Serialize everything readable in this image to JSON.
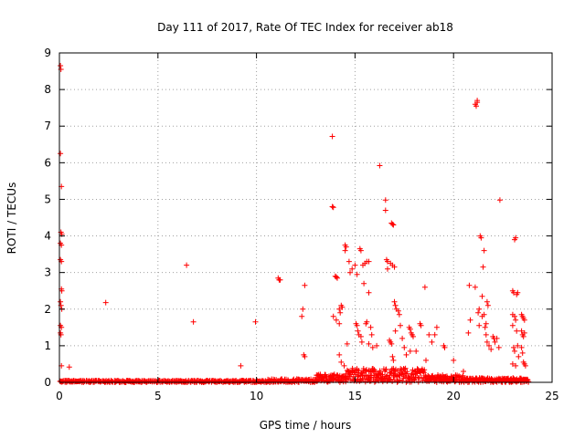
{
  "chart_data": {
    "type": "scatter",
    "title": "Day 111 of 2017, Rate Of TEC Index for receiver ab18",
    "xlabel": "GPS time / hours",
    "ylabel": "ROTI / TECUs",
    "xlim": [
      0,
      25
    ],
    "ylim": [
      0,
      9
    ],
    "xticks": [
      0,
      5,
      10,
      15,
      20,
      25
    ],
    "yticks": [
      0,
      1,
      2,
      3,
      4,
      5,
      6,
      7,
      8,
      9
    ],
    "grid": true,
    "marker": "+",
    "color": "#ff0000",
    "series": [
      {
        "name": "ROTI",
        "points": [
          [
            0.05,
            8.65
          ],
          [
            0.08,
            8.55
          ],
          [
            0.05,
            6.25
          ],
          [
            0.1,
            5.35
          ],
          [
            0.08,
            4.1
          ],
          [
            0.12,
            4.05
          ],
          [
            0.05,
            3.8
          ],
          [
            0.1,
            3.75
          ],
          [
            0.05,
            3.35
          ],
          [
            0.1,
            3.3
          ],
          [
            0.1,
            2.55
          ],
          [
            0.12,
            2.5
          ],
          [
            0.05,
            2.2
          ],
          [
            0.08,
            2.1
          ],
          [
            0.12,
            2.0
          ],
          [
            0.05,
            1.55
          ],
          [
            0.1,
            1.5
          ],
          [
            0.05,
            1.35
          ],
          [
            0.08,
            1.3
          ],
          [
            0.1,
            0.45
          ],
          [
            0.5,
            0.42
          ],
          [
            2.35,
            2.18
          ],
          [
            6.45,
            3.2
          ],
          [
            6.8,
            1.65
          ],
          [
            9.2,
            0.45
          ],
          [
            9.95,
            1.65
          ],
          [
            11.1,
            2.85
          ],
          [
            11.15,
            2.8
          ],
          [
            11.2,
            2.8
          ],
          [
            12.35,
            2.0
          ],
          [
            12.3,
            1.8
          ],
          [
            12.45,
            2.65
          ],
          [
            12.4,
            0.75
          ],
          [
            12.45,
            0.7
          ],
          [
            13.85,
            6.72
          ],
          [
            13.85,
            4.8
          ],
          [
            13.9,
            4.78
          ],
          [
            14.0,
            2.9
          ],
          [
            14.1,
            2.85
          ],
          [
            14.05,
            2.88
          ],
          [
            13.9,
            1.8
          ],
          [
            14.05,
            1.7
          ],
          [
            14.2,
            1.6
          ],
          [
            14.2,
            2.0
          ],
          [
            14.3,
            2.1
          ],
          [
            14.35,
            2.05
          ],
          [
            14.25,
            1.9
          ],
          [
            14.5,
            3.75
          ],
          [
            14.5,
            3.6
          ],
          [
            14.55,
            3.7
          ],
          [
            14.7,
            3.3
          ],
          [
            14.75,
            3.0
          ],
          [
            14.85,
            3.1
          ],
          [
            15.0,
            3.2
          ],
          [
            15.1,
            2.95
          ],
          [
            14.6,
            1.05
          ],
          [
            14.2,
            0.75
          ],
          [
            14.3,
            0.55
          ],
          [
            14.45,
            0.45
          ],
          [
            15.05,
            1.6
          ],
          [
            15.1,
            1.55
          ],
          [
            15.15,
            1.4
          ],
          [
            15.2,
            1.3
          ],
          [
            15.3,
            1.25
          ],
          [
            15.35,
            1.1
          ],
          [
            15.25,
            3.65
          ],
          [
            15.3,
            3.6
          ],
          [
            15.4,
            3.2
          ],
          [
            15.5,
            3.25
          ],
          [
            15.6,
            3.3
          ],
          [
            15.7,
            3.3
          ],
          [
            15.45,
            2.7
          ],
          [
            15.7,
            2.45
          ],
          [
            15.55,
            1.6
          ],
          [
            15.6,
            1.65
          ],
          [
            15.8,
            1.5
          ],
          [
            15.85,
            1.3
          ],
          [
            15.7,
            1.05
          ],
          [
            15.9,
            0.95
          ],
          [
            16.1,
            1.0
          ],
          [
            16.25,
            5.92
          ],
          [
            16.55,
            4.98
          ],
          [
            16.55,
            4.7
          ],
          [
            16.85,
            4.35
          ],
          [
            16.9,
            4.32
          ],
          [
            16.95,
            4.3
          ],
          [
            16.6,
            3.35
          ],
          [
            16.65,
            3.3
          ],
          [
            16.8,
            3.25
          ],
          [
            16.9,
            3.2
          ],
          [
            17.0,
            3.15
          ],
          [
            16.65,
            3.1
          ],
          [
            16.75,
            1.15
          ],
          [
            16.8,
            1.1
          ],
          [
            16.85,
            1.05
          ],
          [
            16.9,
            0.7
          ],
          [
            16.95,
            0.6
          ],
          [
            17.0,
            2.2
          ],
          [
            17.05,
            2.1
          ],
          [
            17.1,
            2.0
          ],
          [
            17.2,
            1.95
          ],
          [
            17.25,
            1.85
          ],
          [
            17.3,
            1.55
          ],
          [
            17.05,
            1.4
          ],
          [
            17.4,
            1.2
          ],
          [
            17.5,
            0.95
          ],
          [
            17.6,
            0.75
          ],
          [
            17.75,
            1.5
          ],
          [
            17.8,
            1.45
          ],
          [
            17.85,
            1.35
          ],
          [
            17.9,
            1.3
          ],
          [
            17.95,
            1.25
          ],
          [
            17.8,
            0.85
          ],
          [
            18.1,
            0.85
          ],
          [
            18.3,
            1.6
          ],
          [
            18.35,
            1.55
          ],
          [
            18.55,
            2.6
          ],
          [
            18.6,
            0.6
          ],
          [
            18.75,
            1.3
          ],
          [
            18.9,
            1.1
          ],
          [
            19.05,
            1.3
          ],
          [
            19.15,
            1.5
          ],
          [
            19.5,
            1.0
          ],
          [
            19.55,
            0.95
          ],
          [
            20.0,
            0.6
          ],
          [
            20.5,
            0.3
          ],
          [
            20.75,
            1.35
          ],
          [
            20.8,
            2.65
          ],
          [
            20.85,
            1.7
          ],
          [
            21.1,
            2.6
          ],
          [
            21.1,
            7.6
          ],
          [
            21.15,
            7.55
          ],
          [
            21.2,
            7.7
          ],
          [
            21.2,
            7.65
          ],
          [
            21.25,
            1.9
          ],
          [
            21.3,
            2.0
          ],
          [
            21.3,
            1.55
          ],
          [
            21.35,
            4.0
          ],
          [
            21.4,
            3.95
          ],
          [
            21.45,
            2.35
          ],
          [
            21.45,
            1.8
          ],
          [
            21.5,
            3.15
          ],
          [
            21.55,
            3.6
          ],
          [
            21.55,
            1.85
          ],
          [
            21.6,
            1.5
          ],
          [
            21.65,
            1.3
          ],
          [
            21.7,
            2.2
          ],
          [
            21.75,
            2.1
          ],
          [
            21.65,
            1.6
          ],
          [
            21.7,
            1.1
          ],
          [
            21.8,
            1.0
          ],
          [
            21.9,
            0.9
          ],
          [
            22.0,
            1.25
          ],
          [
            22.05,
            1.2
          ],
          [
            22.1,
            1.1
          ],
          [
            22.2,
            1.2
          ],
          [
            22.3,
            0.95
          ],
          [
            22.35,
            4.98
          ],
          [
            23.0,
            2.5
          ],
          [
            23.05,
            2.45
          ],
          [
            23.1,
            3.9
          ],
          [
            23.15,
            3.95
          ],
          [
            23.2,
            2.4
          ],
          [
            23.25,
            2.45
          ],
          [
            23.0,
            1.85
          ],
          [
            23.1,
            1.8
          ],
          [
            23.15,
            1.7
          ],
          [
            23.0,
            1.55
          ],
          [
            23.2,
            1.4
          ],
          [
            23.25,
            1.0
          ],
          [
            23.05,
            0.95
          ],
          [
            23.1,
            0.85
          ],
          [
            23.3,
            0.7
          ],
          [
            23.0,
            0.5
          ],
          [
            23.15,
            0.45
          ],
          [
            23.45,
            1.85
          ],
          [
            23.5,
            1.8
          ],
          [
            23.55,
            1.75
          ],
          [
            23.6,
            1.7
          ],
          [
            23.45,
            1.4
          ],
          [
            23.5,
            1.3
          ],
          [
            23.55,
            1.25
          ],
          [
            23.6,
            1.35
          ],
          [
            23.45,
            0.95
          ],
          [
            23.5,
            0.8
          ],
          [
            23.55,
            0.55
          ],
          [
            23.6,
            0.5
          ],
          [
            23.65,
            0.45
          ]
        ]
      }
    ]
  }
}
